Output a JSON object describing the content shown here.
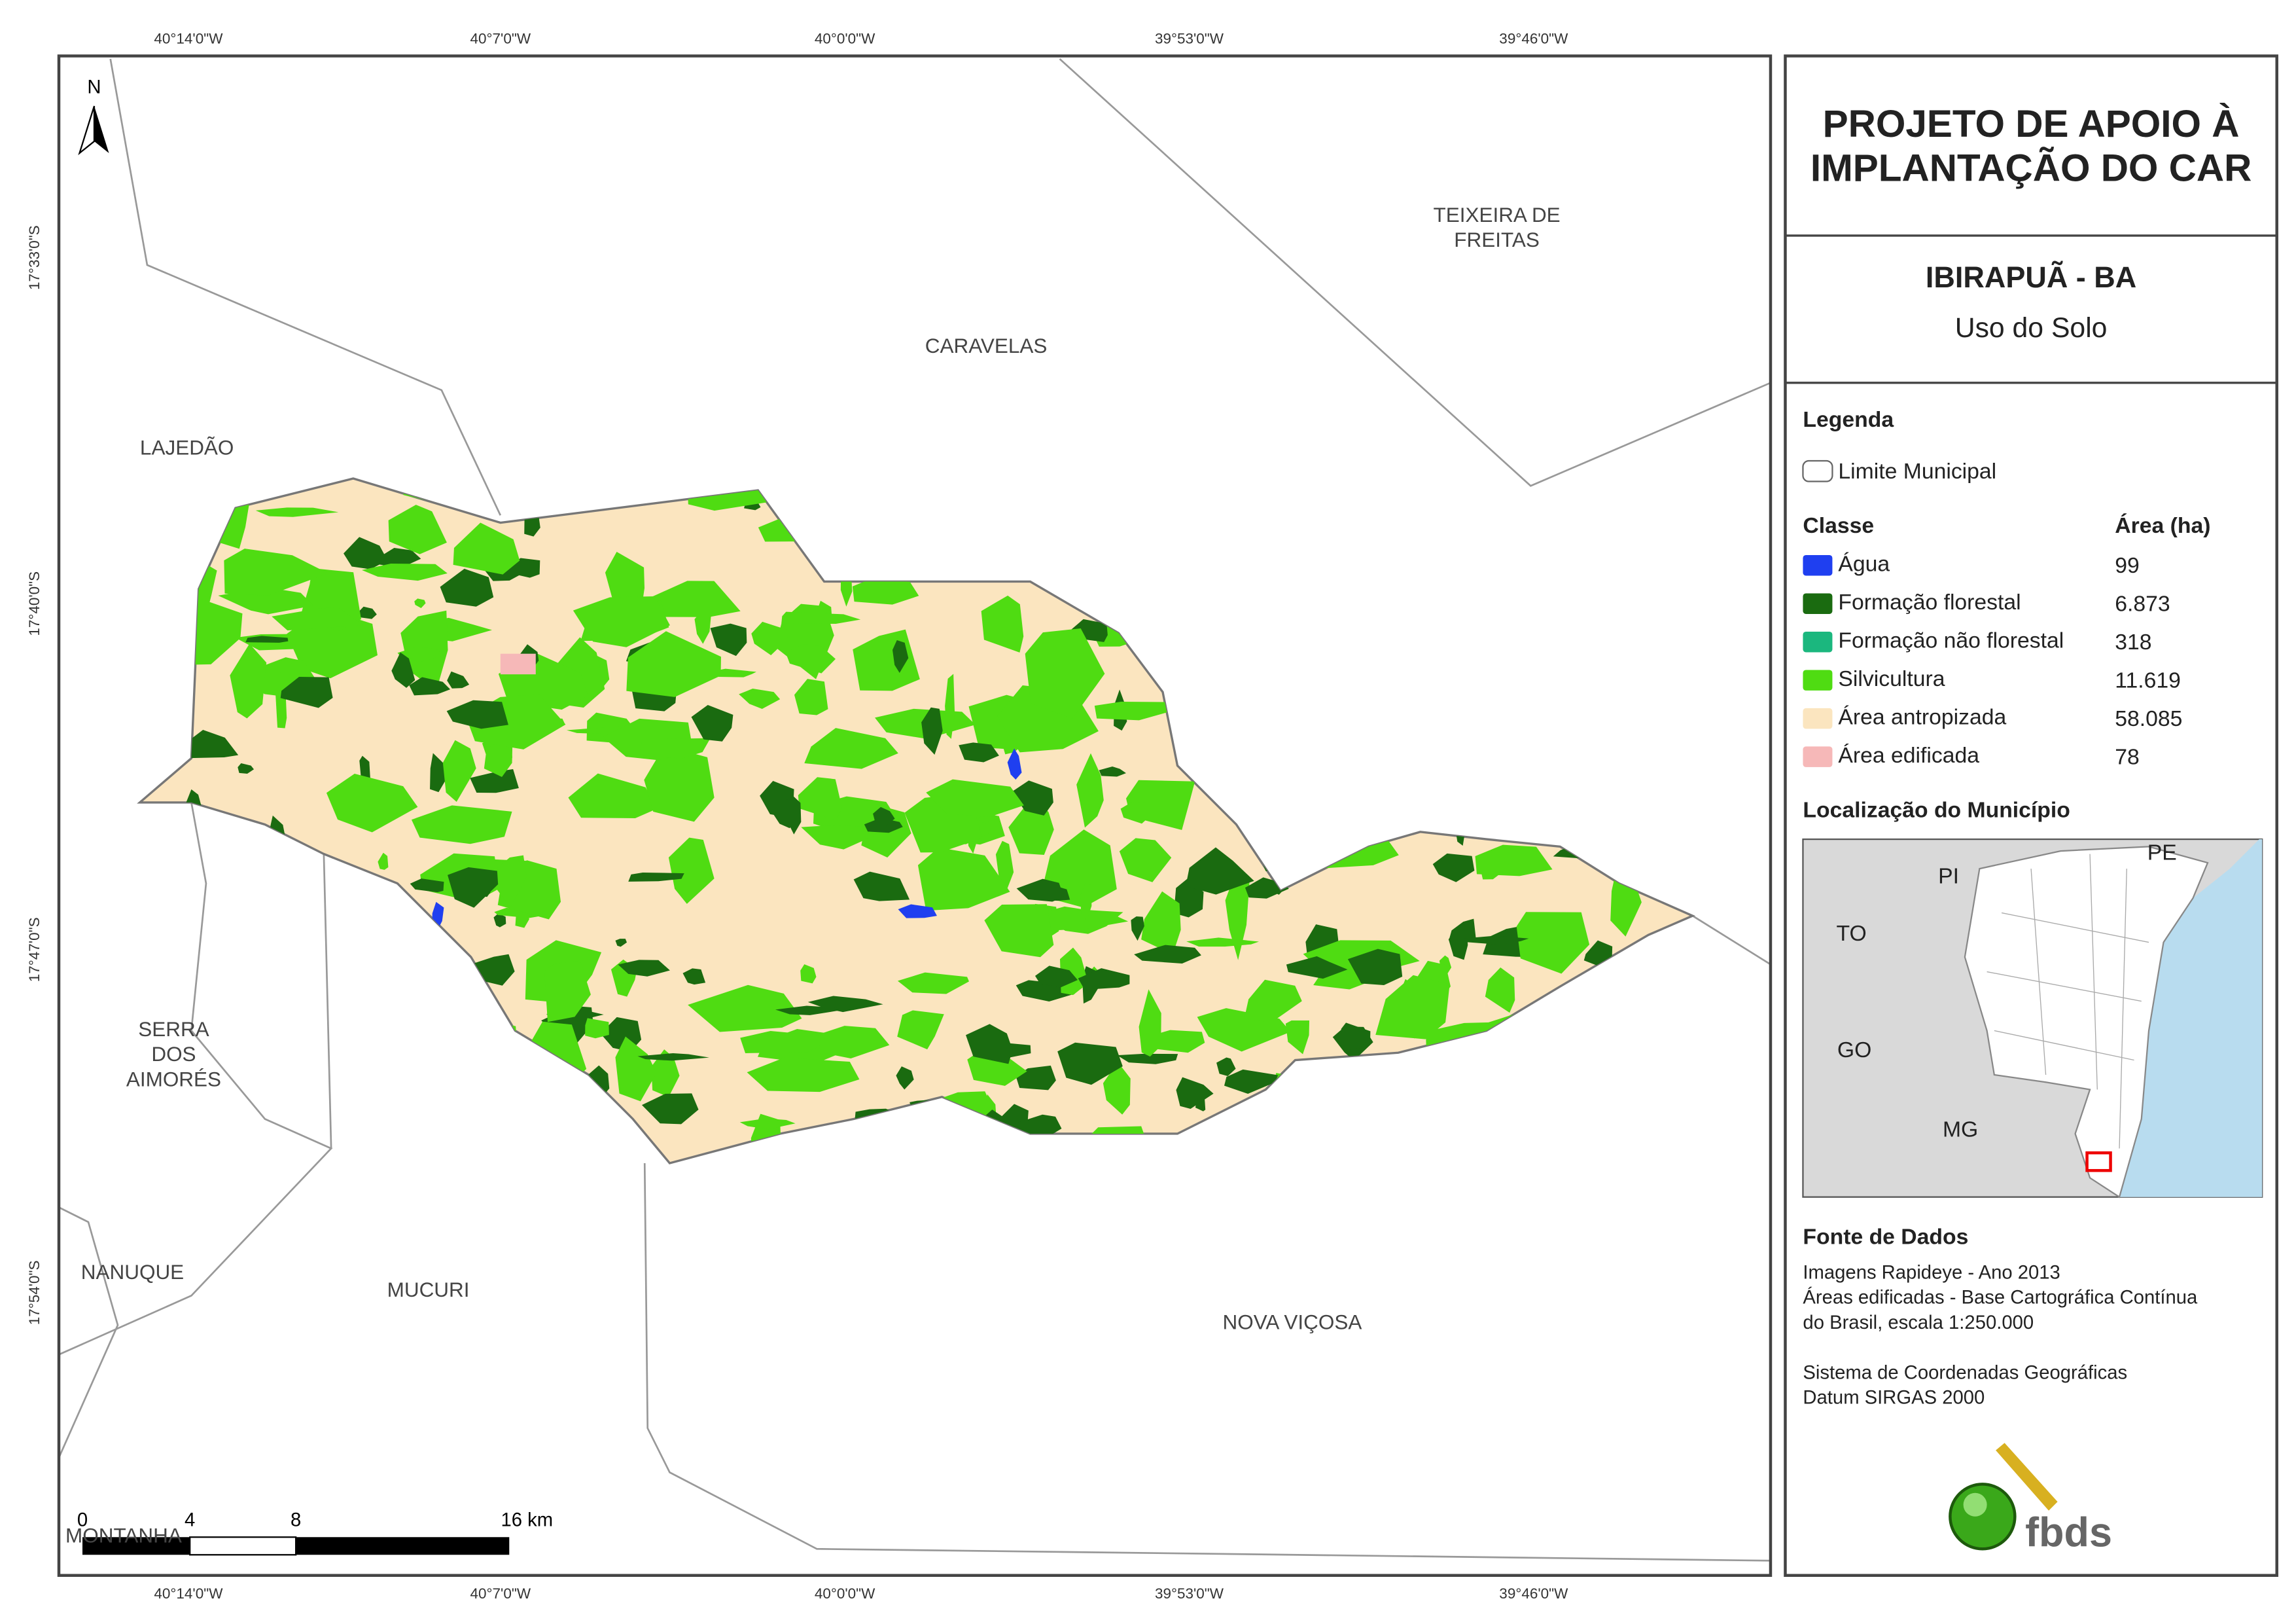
{
  "header": {
    "title": [
      "PROJETO DE APOIO À",
      "IMPLANTAÇÃO DO CAR"
    ],
    "municipality": "IBIRAPUÃ - BA",
    "subtitle": "Uso do Solo"
  },
  "coordinates": {
    "top": [
      "40°14'0\"W",
      "40°7'0\"W",
      "40°0'0\"W",
      "39°53'0\"W",
      "39°46'0\"W"
    ],
    "bottom": [
      "40°14'0\"W",
      "40°7'0\"W",
      "40°0'0\"W",
      "39°53'0\"W",
      "39°46'0\"W"
    ],
    "left": [
      "17°33'0\"S",
      "17°40'0\"S",
      "17°47'0\"S",
      "17°54'0\"S"
    ]
  },
  "north": "N",
  "municipalities": [
    [
      "TEIXEIRA DE",
      "FREITAS"
    ],
    [
      "CARAVELAS"
    ],
    [
      "LAJEDÃO"
    ],
    [
      "SERRA",
      "DOS",
      "AIMORÉS"
    ],
    [
      "NANUQUE"
    ],
    [
      "MUCURI"
    ],
    [
      "NOVA VIÇOSA"
    ],
    [
      "MONTANHA"
    ]
  ],
  "scale_bar": [
    "0",
    "4",
    "8",
    "16 km"
  ],
  "legend": {
    "title": "Legenda",
    "boundary": "Limite Municipal",
    "class_header": "Classe",
    "area_header": "Área (ha)",
    "rows": [
      {
        "name": "Água",
        "area": "99",
        "color": "#1f3ff0"
      },
      {
        "name": "Formação florestal",
        "area": "6.873",
        "color": "#1a6b10"
      },
      {
        "name": "Formação não florestal",
        "area": "318",
        "color": "#1bb77e"
      },
      {
        "name": "Silvicultura",
        "area": "11.619",
        "color": "#4fdc12"
      },
      {
        "name": "Área antropizada",
        "area": "58.085",
        "color": "#fbe5bf"
      },
      {
        "name": "Área edificada",
        "area": "78",
        "color": "#f6b8b8"
      }
    ]
  },
  "location": {
    "title": "Localização do Município",
    "states": [
      "PI",
      "PE",
      "TO",
      "GO",
      "MG"
    ]
  },
  "sources": {
    "title": "Fonte de Dados",
    "lines": [
      "Imagens Rapideye - Ano 2013",
      "Áreas edificadas - Base Cartográfica Contínua",
      "do Brasil, escala 1:250.000",
      "",
      "Sistema de Coordenadas Geográficas",
      "Datum SIRGAS 2000"
    ]
  },
  "logo": "fbds"
}
